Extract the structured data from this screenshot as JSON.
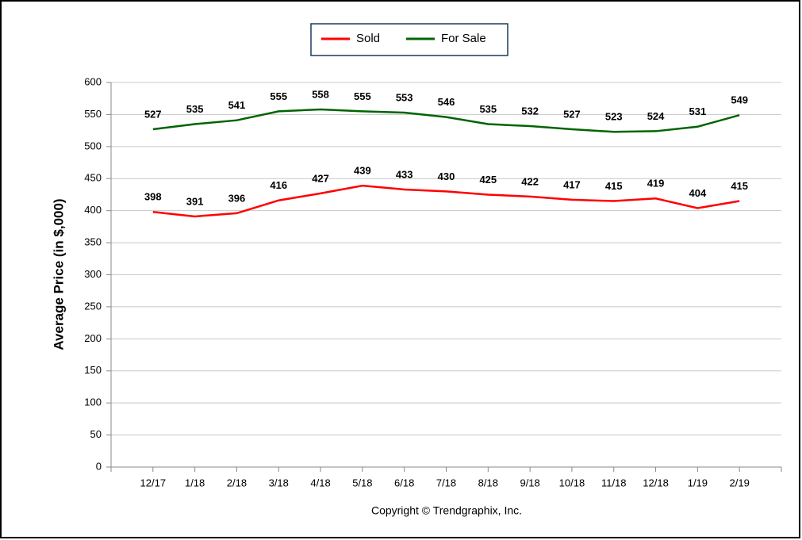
{
  "chart_data": {
    "type": "line",
    "y_label": "Average Price (in $,000)",
    "footer": "Copyright © Trendgraphix, Inc.",
    "categories": [
      "12/17",
      "1/18",
      "2/18",
      "3/18",
      "4/18",
      "5/18",
      "6/18",
      "7/18",
      "8/18",
      "9/18",
      "10/18",
      "11/18",
      "12/18",
      "1/19",
      "2/19"
    ],
    "series": [
      {
        "name": "Sold",
        "color": "#ff0000",
        "values": [
          398,
          391,
          396,
          416,
          427,
          439,
          433,
          430,
          425,
          422,
          417,
          415,
          419,
          404,
          415
        ]
      },
      {
        "name": "For Sale",
        "color": "#006400",
        "values": [
          527,
          535,
          541,
          555,
          558,
          555,
          553,
          546,
          535,
          532,
          527,
          523,
          524,
          531,
          549
        ]
      }
    ],
    "ylim": [
      0,
      600
    ],
    "yticks": [
      0,
      50,
      100,
      150,
      200,
      250,
      300,
      350,
      400,
      450,
      500,
      550,
      600
    ],
    "grid": true,
    "legend": "top"
  }
}
